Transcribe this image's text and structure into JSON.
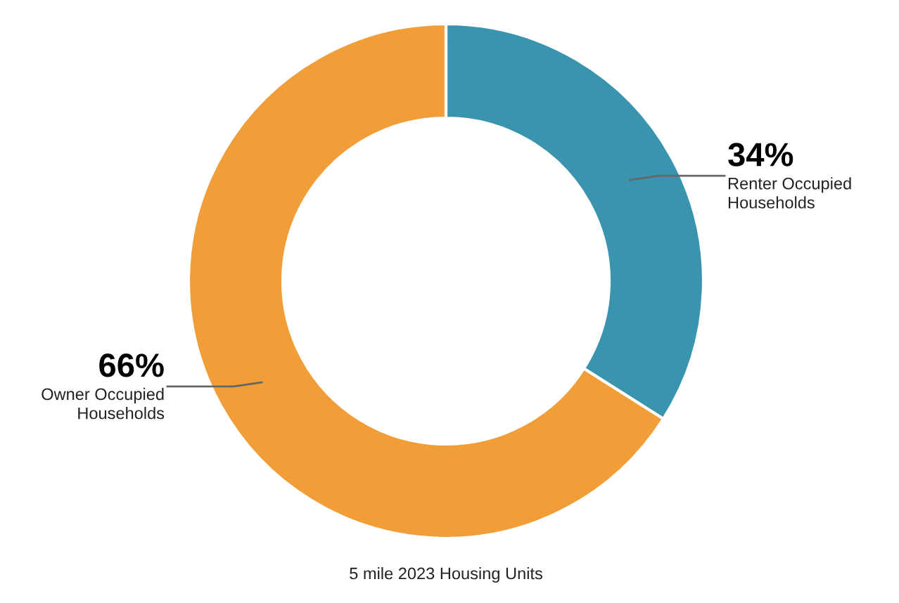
{
  "chart_data": {
    "type": "donut",
    "title": "5 mile 2023 Housing Units",
    "categories": [
      "Renter Occupied Households",
      "Owner Occupied Households"
    ],
    "values": [
      34,
      66
    ],
    "colors": [
      "#3a94ae",
      "#f19e38"
    ],
    "value_labels": [
      "34%",
      "66%"
    ],
    "legend": false
  }
}
